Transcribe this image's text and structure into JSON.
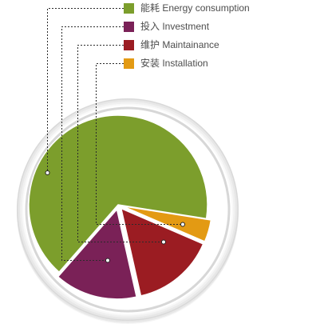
{
  "chart_data": {
    "type": "pie",
    "categories": [
      "能耗 Energy consumption",
      "投入 Investment",
      "维护 Maintainance",
      "安装 Installation"
    ],
    "values": [
      66,
      15,
      15,
      4
    ],
    "colors": [
      "#7c9e2c",
      "#7a2157",
      "#9b1c22",
      "#e39a13"
    ],
    "exploded": [
      false,
      true,
      true,
      true
    ],
    "legend": "top-right"
  }
}
